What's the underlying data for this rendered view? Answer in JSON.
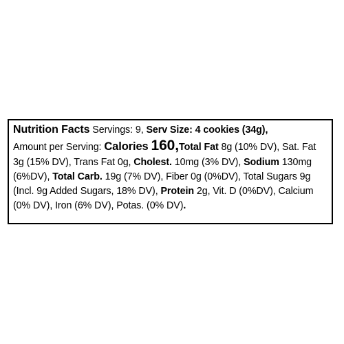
{
  "header": {
    "title": "Nutrition Facts",
    "servings": "Servings: 9,",
    "serv_size_label": "Serv Size:",
    "serv_size_value": "4 cookies (34g),"
  },
  "body": {
    "amount_per_serving": "Amount per Serving:",
    "calories_label": "Calories",
    "calories_value": "160,",
    "total_fat_label": "Total Fat",
    "total_fat_value": "8g (10% DV), Sat. Fat",
    "sat_fat_value": "3g (15% DV), Trans Fat 0g,",
    "cholest_label": "Cholest.",
    "cholest_value": "10mg (3% DV),",
    "sodium_label": "Sodium",
    "sodium_value": "130mg",
    "sodium_dv": "(6%DV),",
    "total_carb_label": "Total Carb.",
    "total_carb_value": "19g (7% DV), Fiber 0g (0%DV), Total Sugars 9g",
    "added_sugars": "(Incl. 9g Added Sugars, 18% DV),",
    "protein_label": "Protein",
    "protein_value": "2g, Vit. D (0%DV), Calcium",
    "minerals": "(0% DV), Iron (6% DV), Potas. (0% DV)",
    "end_mark": "."
  }
}
